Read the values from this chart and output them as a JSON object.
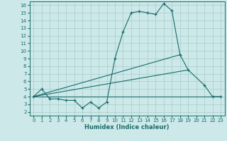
{
  "xlabel": "Humidex (Indice chaleur)",
  "background_color": "#cce8e8",
  "grid_color": "#a8cccc",
  "line_color": "#1a6b6b",
  "xlim": [
    -0.5,
    23.5
  ],
  "ylim": [
    1.5,
    16.5
  ],
  "xticks": [
    0,
    1,
    2,
    3,
    4,
    5,
    6,
    7,
    8,
    9,
    10,
    11,
    12,
    13,
    14,
    15,
    16,
    17,
    18,
    19,
    20,
    21,
    22,
    23
  ],
  "yticks": [
    2,
    3,
    4,
    5,
    6,
    7,
    8,
    9,
    10,
    11,
    12,
    13,
    14,
    15,
    16
  ],
  "main_x": [
    0,
    1,
    2,
    3,
    4,
    5,
    6,
    7,
    8,
    9,
    10,
    11,
    12,
    13,
    14,
    15,
    16,
    17,
    18,
    19,
    21,
    22,
    23
  ],
  "main_y": [
    4.0,
    5.0,
    3.7,
    3.7,
    3.5,
    3.5,
    2.5,
    3.3,
    2.5,
    3.3,
    9.0,
    12.5,
    15.0,
    15.2,
    15.0,
    14.8,
    16.2,
    15.3,
    9.5,
    7.5,
    5.5,
    4.0,
    4.0
  ],
  "line1_x": [
    0,
    23
  ],
  "line1_y": [
    4.0,
    4.0
  ],
  "line2_x": [
    0,
    19
  ],
  "line2_y": [
    4.0,
    7.5
  ],
  "line3_x": [
    0,
    18
  ],
  "line3_y": [
    4.0,
    9.5
  ]
}
